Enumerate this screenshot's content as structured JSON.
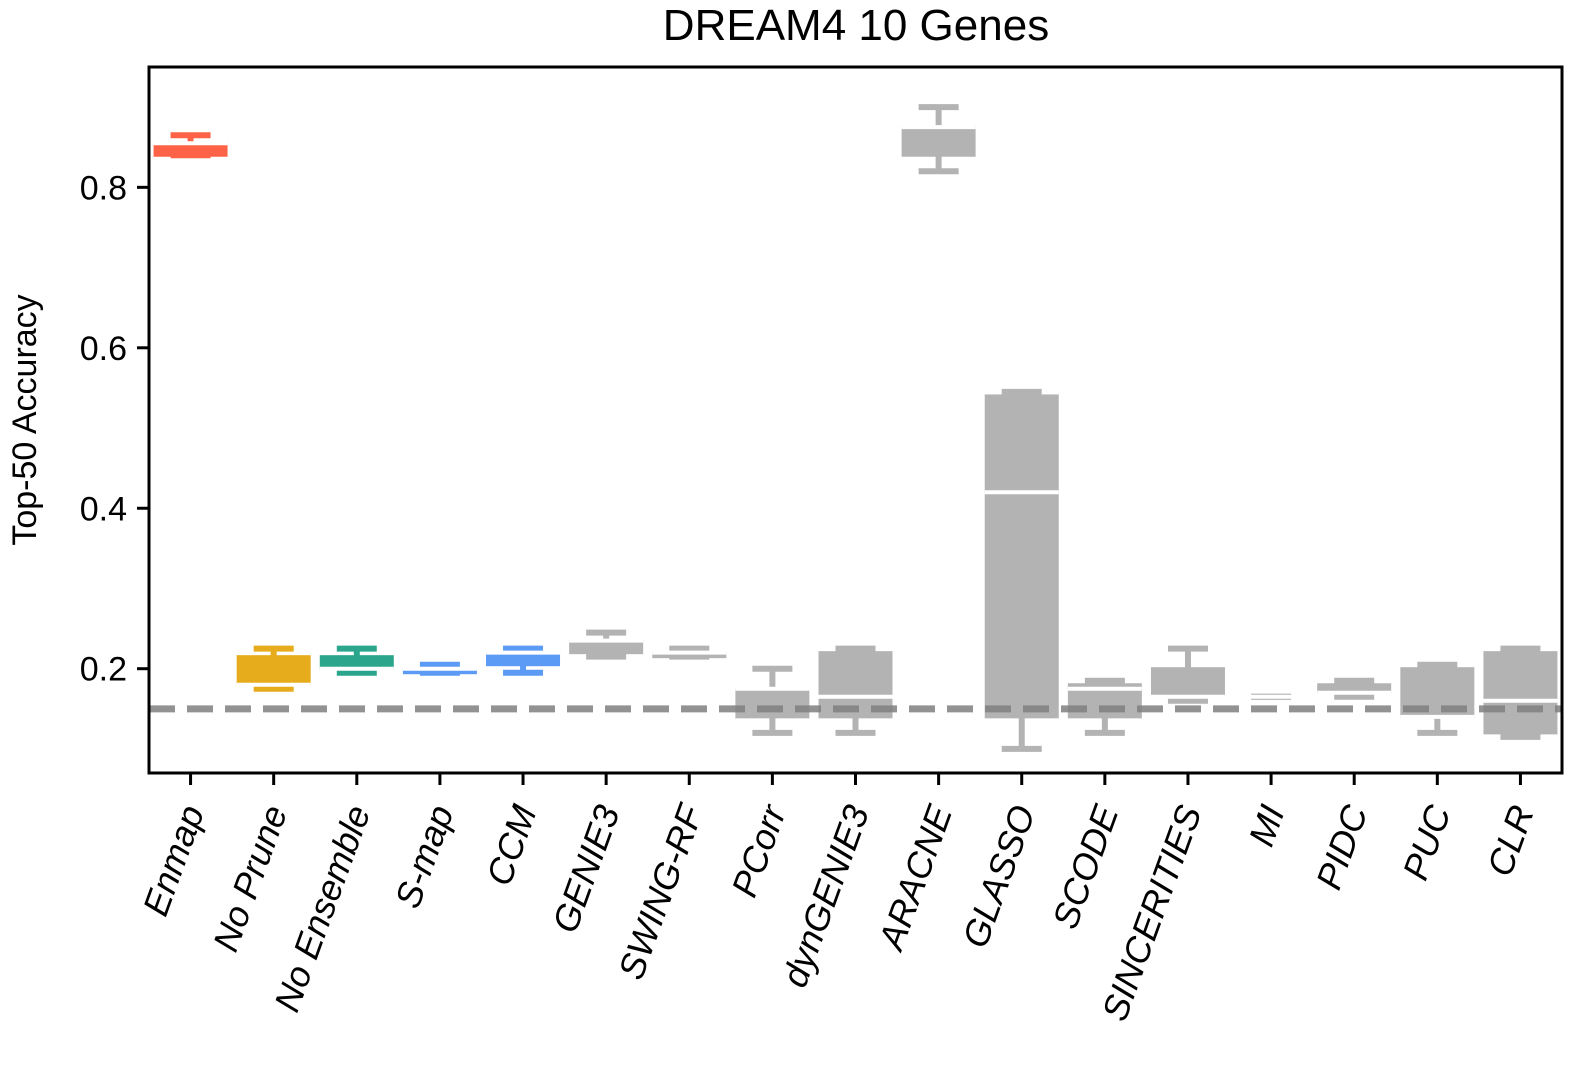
{
  "chart_data": {
    "type": "box",
    "title": "DREAM4 10 Genes",
    "xlabel": "",
    "ylabel": "Top-50 Accuracy",
    "ylim": [
      0.07,
      0.95
    ],
    "yticks": [
      "0.2",
      "0.4",
      "0.6",
      "0.8"
    ],
    "baseline": 0.15,
    "grid": false,
    "legend": "none",
    "colors": {
      "enmap": "#ff6347",
      "no_prune": "#e6ac1c",
      "no_ensemble": "#2ca58d",
      "ccm": "#5b9bf5",
      "other": "#b3b3b3",
      "baseline": "#808080",
      "median": "#ffffff"
    },
    "categories": [
      "Enmap",
      "No Prune",
      "No Ensemble",
      "S-map",
      "CCM",
      "GENIE3",
      "SWING-RF",
      "PCorr",
      "dynGENIE3",
      "ARACNE",
      "GLASSO",
      "SCODE",
      "SINCERITIES",
      "MI",
      "PIDC",
      "PUC",
      "CLR"
    ],
    "boxes": [
      {
        "label": "Enmap",
        "color_key": "enmap",
        "whislo": 0.84,
        "q1": 0.84,
        "med": 0.855,
        "q3": 0.855,
        "whishi": 0.865
      },
      {
        "label": "No Prune",
        "color_key": "no_prune",
        "whislo": 0.175,
        "q1": 0.18,
        "med": 0.18,
        "q3": 0.215,
        "whishi": 0.225
      },
      {
        "label": "No Ensemble",
        "color_key": "no_ensemble",
        "whislo": 0.195,
        "q1": 0.2,
        "med": 0.2,
        "q3": 0.215,
        "whishi": 0.225
      },
      {
        "label": "S-map",
        "color_key": "ccm",
        "whislo": 0.195,
        "q1": 0.195,
        "med": 0.2,
        "q3": 0.2,
        "whishi": 0.205
      },
      {
        "label": "CCM",
        "color_key": "ccm",
        "whislo": 0.195,
        "q1": 0.205,
        "med": 0.22,
        "q3": 0.22,
        "whishi": 0.225
      },
      {
        "label": "GENIE3",
        "color_key": "other",
        "whislo": 0.215,
        "q1": 0.22,
        "med": 0.235,
        "q3": 0.235,
        "whishi": 0.245
      },
      {
        "label": "SWING-RF",
        "color_key": "other",
        "whislo": 0.215,
        "q1": 0.215,
        "med": 0.22,
        "q3": 0.22,
        "whishi": 0.225
      },
      {
        "label": "PCorr",
        "color_key": "other",
        "whislo": 0.12,
        "q1": 0.14,
        "med": 0.175,
        "q3": 0.175,
        "whishi": 0.2
      },
      {
        "label": "dynGENIE3",
        "color_key": "other",
        "whislo": 0.12,
        "q1": 0.14,
        "med": 0.165,
        "q3": 0.22,
        "whishi": 0.225
      },
      {
        "label": "ARACNE",
        "color_key": "other",
        "whislo": 0.82,
        "q1": 0.84,
        "med": 0.875,
        "q3": 0.875,
        "whishi": 0.9
      },
      {
        "label": "GLASSO",
        "color_key": "other",
        "whislo": 0.1,
        "q1": 0.14,
        "med": 0.42,
        "q3": 0.54,
        "whishi": 0.545
      },
      {
        "label": "SCODE",
        "color_key": "other",
        "whislo": 0.12,
        "q1": 0.14,
        "med": 0.175,
        "q3": 0.18,
        "whishi": 0.185
      },
      {
        "label": "SINCERITIES",
        "color_key": "other",
        "whislo": 0.16,
        "q1": 0.165,
        "med": 0.165,
        "q3": 0.2,
        "whishi": 0.225
      },
      {
        "label": "MI",
        "color_key": "other",
        "whislo": 0.165,
        "q1": 0.165,
        "med": 0.165,
        "q3": 0.165,
        "whishi": 0.165
      },
      {
        "label": "PIDC",
        "color_key": "other",
        "whislo": 0.165,
        "q1": 0.17,
        "med": 0.17,
        "q3": 0.18,
        "whishi": 0.185
      },
      {
        "label": "PUC",
        "color_key": "other",
        "whislo": 0.12,
        "q1": 0.14,
        "med": 0.14,
        "q3": 0.2,
        "whishi": 0.205
      },
      {
        "label": "CLR",
        "color_key": "other",
        "whislo": 0.115,
        "q1": 0.12,
        "med": 0.16,
        "q3": 0.22,
        "whishi": 0.225
      }
    ]
  }
}
